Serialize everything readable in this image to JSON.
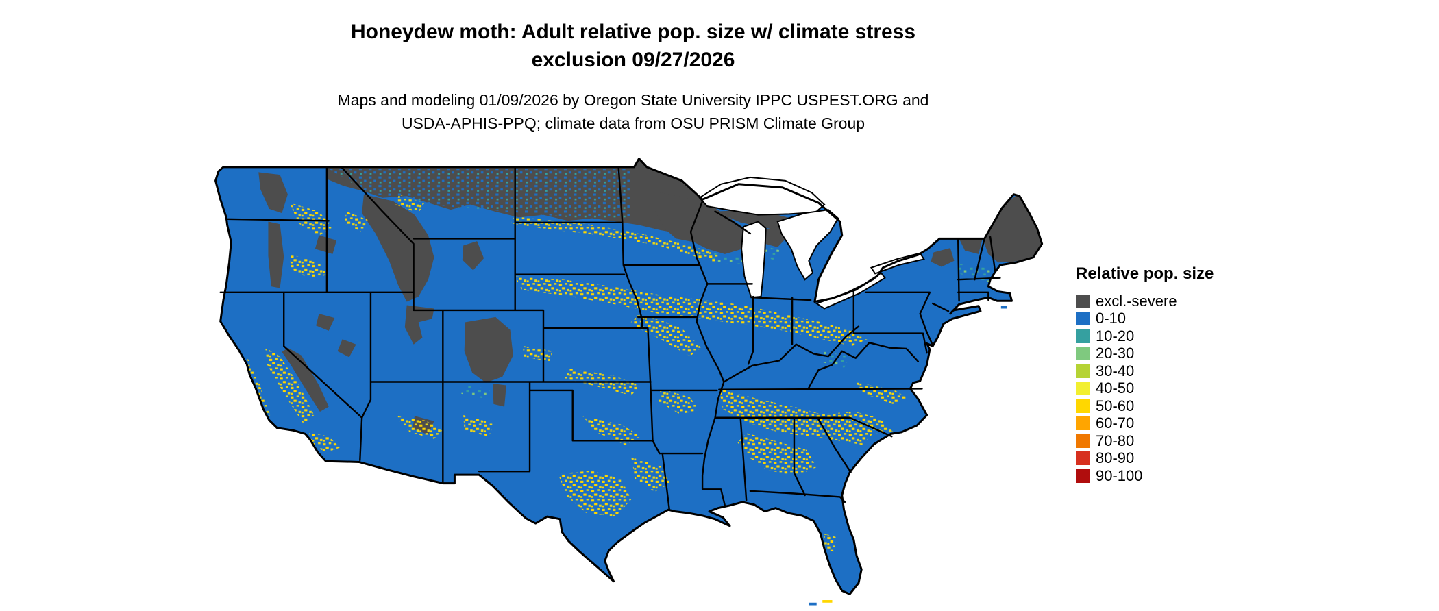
{
  "title": {
    "line1": "Honeydew moth: Adult relative pop. size w/ climate stress",
    "line2": "exclusion 09/27/2026"
  },
  "subtitle": {
    "line1": "Maps and modeling 01/09/2026 by Oregon State University IPPC USPEST.ORG and",
    "line2": "USDA-APHIS-PPQ; climate data from OSU PRISM Climate Group"
  },
  "legend": {
    "title": "Relative pop. size",
    "items": [
      {
        "label": "excl.-severe",
        "color": "#4d4d4d"
      },
      {
        "label": "0-10",
        "color": "#1d6fc4"
      },
      {
        "label": "10-20",
        "color": "#35a0a0"
      },
      {
        "label": "20-30",
        "color": "#7fc97f"
      },
      {
        "label": "30-40",
        "color": "#b5d334"
      },
      {
        "label": "40-50",
        "color": "#f2ef30"
      },
      {
        "label": "50-60",
        "color": "#ffd700"
      },
      {
        "label": "60-70",
        "color": "#ffa500"
      },
      {
        "label": "70-80",
        "color": "#f07800"
      },
      {
        "label": "80-90",
        "color": "#d7301f"
      },
      {
        "label": "90-100",
        "color": "#b00d0d"
      }
    ]
  },
  "map": {
    "base_color": "#1d6fc4",
    "exclusion_color": "#4d4d4d",
    "border_color": "#000000",
    "water_color": "#ffffff",
    "speckle_yellow": "#ffd700",
    "speckle_yellow2": "#e8d61c",
    "speckle_teal": "#35a0a0",
    "speckle_green": "#7fc97f",
    "speckle_blue": "#1d6fc4"
  }
}
